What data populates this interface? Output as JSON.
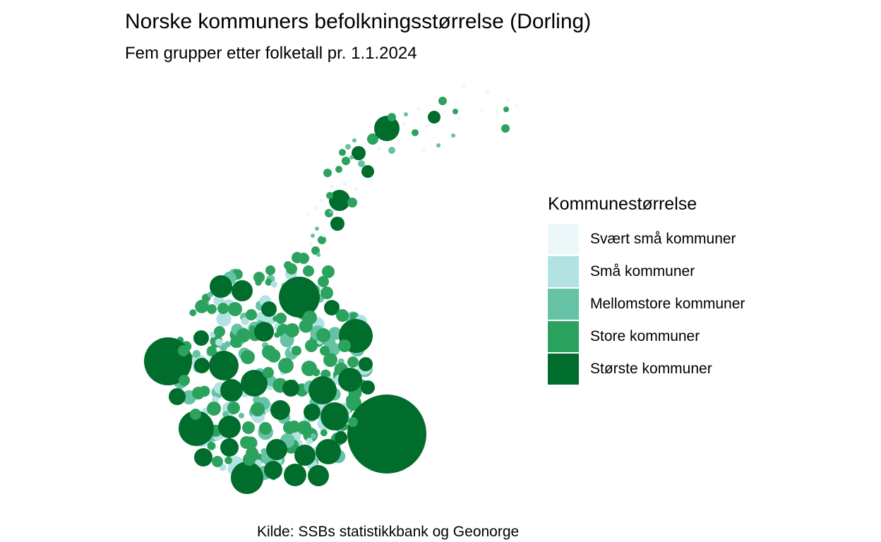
{
  "title": "Norske kommuners befolkningsstørrelse (Dorling)",
  "subtitle": "Fem grupper etter folketall pr. 1.1.2024",
  "caption": "Kilde: SSBs statistikkbank og Geonorge",
  "legend": {
    "title": "Kommunestørrelse",
    "items": [
      {
        "label": "Svært små kommuner",
        "color": "#edf8fb"
      },
      {
        "label": "Små kommuner",
        "color": "#b2e2e2"
      },
      {
        "label": "Mellomstore kommuner",
        "color": "#66c2a4"
      },
      {
        "label": "Store kommuner",
        "color": "#2ca25f"
      },
      {
        "label": "Største kommuner",
        "color": "#006d2c"
      }
    ]
  }
}
